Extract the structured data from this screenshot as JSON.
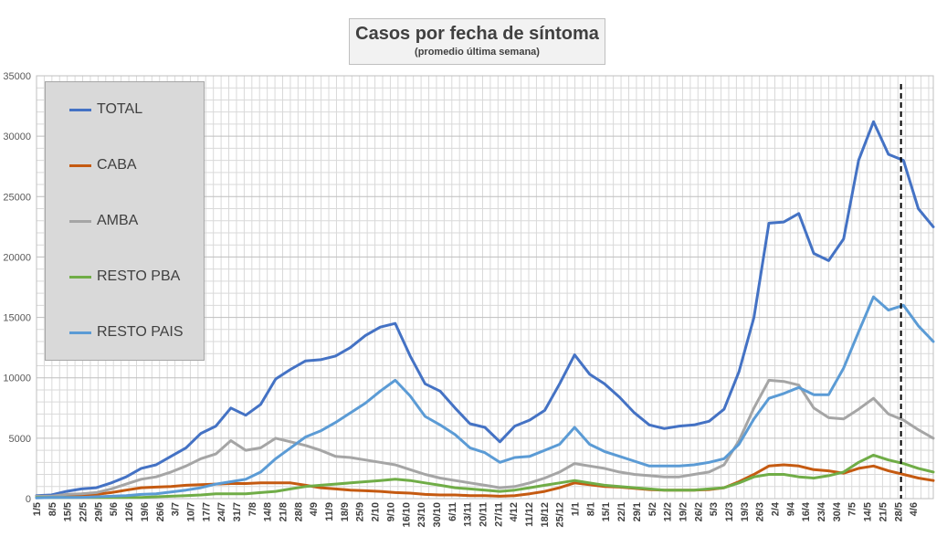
{
  "chart_data": {
    "type": "line",
    "title": "Casos por fecha de síntoma",
    "subtitle": "(promedio última semana)",
    "xlabel": "",
    "ylabel": "",
    "ylim": [
      0,
      35000
    ],
    "yticks": [
      0,
      5000,
      10000,
      15000,
      20000,
      25000,
      30000,
      35000
    ],
    "grid": true,
    "legend_position": "top-left",
    "x_tick_labels": [
      "1/5",
      "8/5",
      "15/5",
      "22/5",
      "29/5",
      "5/6",
      "12/6",
      "19/6",
      "26/6",
      "3/7",
      "10/7",
      "17/7",
      "24/7",
      "31/7",
      "7/8",
      "14/8",
      "21/8",
      "28/8",
      "4/9",
      "11/9",
      "18/9",
      "25/9",
      "2/10",
      "9/10",
      "16/10",
      "23/10",
      "30/10",
      "6/11",
      "13/11",
      "20/11",
      "27/11",
      "4/12",
      "11/12",
      "18/12",
      "25/12",
      "1/1",
      "8/1",
      "15/1",
      "22/1",
      "29/1",
      "5/2",
      "12/2",
      "19/2",
      "26/2",
      "5/3",
      "12/3",
      "19/3",
      "26/3",
      "2/4",
      "9/4",
      "16/4",
      "23/4",
      "30/4",
      "7/5",
      "14/5",
      "21/5",
      "28/5",
      "4/6"
    ],
    "x_week_index": [
      0,
      1,
      2,
      3,
      4,
      5,
      6,
      7,
      8,
      9,
      10,
      11,
      12,
      13,
      14,
      15,
      16,
      17,
      18,
      19,
      20,
      21,
      22,
      23,
      24,
      25,
      26,
      27,
      28,
      29,
      30,
      31,
      32,
      33,
      34,
      35,
      36,
      37,
      38,
      39,
      40,
      41,
      42,
      43,
      44,
      45,
      46,
      47,
      48,
      49,
      50,
      51,
      52,
      53,
      54,
      55,
      56,
      57,
      58.3
    ],
    "vline_week": 56.2,
    "series": [
      {
        "name": "TOTAL",
        "color": "#4472c4",
        "values": [
          250,
          300,
          600,
          800,
          900,
          1300,
          1800,
          2500,
          2800,
          3500,
          4200,
          5400,
          6000,
          7500,
          6900,
          7800,
          9900,
          10700,
          11400,
          11500,
          11800,
          12500,
          13500,
          14200,
          14500,
          11800,
          9500,
          8900,
          7500,
          6200,
          5900,
          4700,
          6000,
          6500,
          7300,
          9500,
          11900,
          10300,
          9500,
          8400,
          7100,
          6100,
          5800,
          6000,
          6100,
          6400,
          7400,
          10500,
          15000,
          22800,
          22900,
          23600,
          20300,
          19700,
          21500,
          28000,
          31200,
          28500,
          28000,
          24000,
          22500
        ]
      },
      {
        "name": "CABA",
        "color": "#c55a11",
        "values": [
          100,
          150,
          250,
          300,
          350,
          500,
          700,
          900,
          950,
          1000,
          1100,
          1150,
          1200,
          1250,
          1250,
          1300,
          1300,
          1300,
          1100,
          900,
          800,
          700,
          650,
          600,
          500,
          450,
          350,
          300,
          300,
          250,
          250,
          200,
          250,
          400,
          600,
          900,
          1300,
          1150,
          1000,
          950,
          850,
          750,
          700,
          700,
          700,
          750,
          900,
          1400,
          2000,
          2700,
          2800,
          2700,
          2400,
          2300,
          2100,
          2500,
          2700,
          2300,
          2000,
          1700,
          1500
        ]
      },
      {
        "name": "AMBA",
        "color": "#a5a5a5",
        "values": [
          200,
          200,
          350,
          400,
          500,
          800,
          1200,
          1600,
          1800,
          2200,
          2700,
          3300,
          3700,
          4800,
          4000,
          4200,
          5000,
          4700,
          4400,
          4000,
          3500,
          3400,
          3200,
          3000,
          2800,
          2400,
          2000,
          1700,
          1500,
          1300,
          1100,
          900,
          1000,
          1300,
          1700,
          2200,
          2900,
          2700,
          2500,
          2200,
          2000,
          1900,
          1800,
          1800,
          2000,
          2200,
          2800,
          4800,
          7500,
          9800,
          9700,
          9400,
          7500,
          6700,
          6600,
          7400,
          8300,
          7000,
          6500,
          5700,
          5000
        ]
      },
      {
        "name": "RESTO PBA",
        "color": "#70ad47",
        "values": [
          100,
          100,
          100,
          100,
          100,
          100,
          100,
          100,
          150,
          200,
          250,
          300,
          400,
          400,
          400,
          500,
          600,
          800,
          1000,
          1100,
          1200,
          1300,
          1400,
          1500,
          1600,
          1500,
          1300,
          1100,
          900,
          800,
          700,
          600,
          700,
          900,
          1100,
          1300,
          1500,
          1300,
          1100,
          1000,
          900,
          800,
          700,
          700,
          700,
          800,
          900,
          1300,
          1800,
          2000,
          2000,
          1800,
          1700,
          1900,
          2200,
          3000,
          3600,
          3200,
          2900,
          2500,
          2200
        ]
      },
      {
        "name": "RESTO PAIS",
        "color": "#5b9bd5",
        "values": [
          50,
          100,
          100,
          100,
          150,
          200,
          250,
          350,
          400,
          550,
          700,
          900,
          1200,
          1400,
          1600,
          2200,
          3300,
          4200,
          5100,
          5600,
          6300,
          7100,
          7900,
          8900,
          9800,
          8500,
          6800,
          6100,
          5300,
          4200,
          3800,
          3000,
          3400,
          3500,
          4000,
          4500,
          5900,
          4500,
          3900,
          3500,
          3100,
          2700,
          2700,
          2700,
          2800,
          3000,
          3300,
          4500,
          6600,
          8300,
          8700,
          9200,
          8600,
          8600,
          10800,
          13800,
          16700,
          15600,
          16000,
          14300,
          13000
        ]
      }
    ]
  },
  "legend_items": [
    {
      "label": "TOTAL",
      "color": "#4472c4"
    },
    {
      "label": "CABA",
      "color": "#c55a11"
    },
    {
      "label": "AMBA",
      "color": "#a5a5a5"
    },
    {
      "label": "RESTO PBA",
      "color": "#70ad47"
    },
    {
      "label": "RESTO PAIS",
      "color": "#5b9bd5"
    }
  ]
}
